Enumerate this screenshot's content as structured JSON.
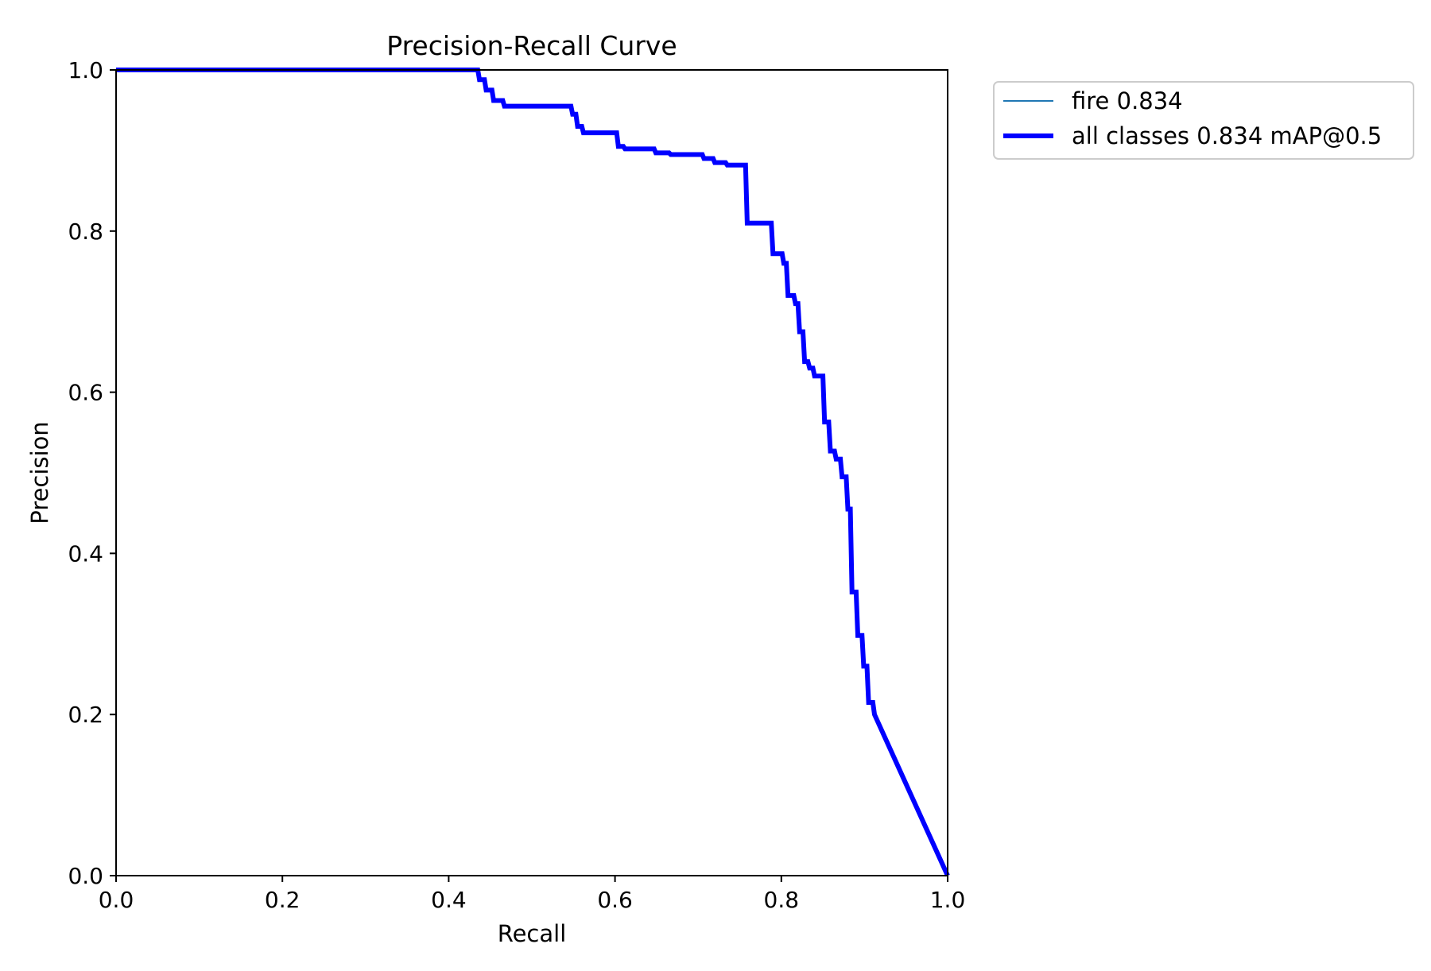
{
  "chart_data": {
    "type": "line",
    "title": "Precision-Recall Curve",
    "xlabel": "Recall",
    "ylabel": "Precision",
    "xlim": [
      0.0,
      1.0
    ],
    "ylim": [
      0.0,
      1.0
    ],
    "x_ticks": [
      "0.0",
      "0.2",
      "0.4",
      "0.6",
      "0.8",
      "1.0"
    ],
    "y_ticks": [
      "0.0",
      "0.2",
      "0.4",
      "0.6",
      "0.8",
      "1.0"
    ],
    "grid": false,
    "legend_position": "outside-upper-right",
    "series": [
      {
        "name": "fire 0.834",
        "color": "#1f77b4",
        "style": "thin",
        "points": [
          [
            0.0,
            1.0
          ],
          [
            0.435,
            1.0
          ],
          [
            0.437,
            0.988
          ],
          [
            0.443,
            0.988
          ],
          [
            0.445,
            0.975
          ],
          [
            0.452,
            0.975
          ],
          [
            0.454,
            0.962
          ],
          [
            0.465,
            0.962
          ],
          [
            0.467,
            0.955
          ],
          [
            0.547,
            0.955
          ],
          [
            0.549,
            0.945
          ],
          [
            0.553,
            0.945
          ],
          [
            0.555,
            0.93
          ],
          [
            0.56,
            0.93
          ],
          [
            0.562,
            0.922
          ],
          [
            0.602,
            0.922
          ],
          [
            0.604,
            0.905
          ],
          [
            0.61,
            0.905
          ],
          [
            0.612,
            0.902
          ],
          [
            0.647,
            0.902
          ],
          [
            0.649,
            0.897
          ],
          [
            0.665,
            0.897
          ],
          [
            0.667,
            0.895
          ],
          [
            0.705,
            0.895
          ],
          [
            0.707,
            0.89
          ],
          [
            0.718,
            0.89
          ],
          [
            0.72,
            0.885
          ],
          [
            0.733,
            0.885
          ],
          [
            0.735,
            0.882
          ],
          [
            0.757,
            0.882
          ],
          [
            0.759,
            0.81
          ],
          [
            0.788,
            0.81
          ],
          [
            0.79,
            0.772
          ],
          [
            0.801,
            0.772
          ],
          [
            0.803,
            0.76
          ],
          [
            0.806,
            0.76
          ],
          [
            0.808,
            0.72
          ],
          [
            0.815,
            0.72
          ],
          [
            0.817,
            0.71
          ],
          [
            0.82,
            0.71
          ],
          [
            0.822,
            0.675
          ],
          [
            0.826,
            0.675
          ],
          [
            0.828,
            0.638
          ],
          [
            0.832,
            0.638
          ],
          [
            0.834,
            0.63
          ],
          [
            0.838,
            0.63
          ],
          [
            0.84,
            0.62
          ],
          [
            0.85,
            0.62
          ],
          [
            0.852,
            0.563
          ],
          [
            0.857,
            0.563
          ],
          [
            0.859,
            0.527
          ],
          [
            0.864,
            0.527
          ],
          [
            0.866,
            0.517
          ],
          [
            0.871,
            0.517
          ],
          [
            0.873,
            0.495
          ],
          [
            0.878,
            0.495
          ],
          [
            0.88,
            0.455
          ],
          [
            0.883,
            0.455
          ],
          [
            0.885,
            0.352
          ],
          [
            0.89,
            0.352
          ],
          [
            0.892,
            0.298
          ],
          [
            0.897,
            0.298
          ],
          [
            0.899,
            0.26
          ],
          [
            0.903,
            0.26
          ],
          [
            0.905,
            0.215
          ],
          [
            0.91,
            0.215
          ],
          [
            0.912,
            0.2
          ],
          [
            1.0,
            0.0
          ]
        ]
      },
      {
        "name": "all classes 0.834 mAP@0.5",
        "color": "#0000ff",
        "style": "thick",
        "points": [
          [
            0.0,
            1.0
          ],
          [
            0.435,
            1.0
          ],
          [
            0.437,
            0.988
          ],
          [
            0.443,
            0.988
          ],
          [
            0.445,
            0.975
          ],
          [
            0.452,
            0.975
          ],
          [
            0.454,
            0.962
          ],
          [
            0.465,
            0.962
          ],
          [
            0.467,
            0.955
          ],
          [
            0.547,
            0.955
          ],
          [
            0.549,
            0.945
          ],
          [
            0.553,
            0.945
          ],
          [
            0.555,
            0.93
          ],
          [
            0.56,
            0.93
          ],
          [
            0.562,
            0.922
          ],
          [
            0.602,
            0.922
          ],
          [
            0.604,
            0.905
          ],
          [
            0.61,
            0.905
          ],
          [
            0.612,
            0.902
          ],
          [
            0.647,
            0.902
          ],
          [
            0.649,
            0.897
          ],
          [
            0.665,
            0.897
          ],
          [
            0.667,
            0.895
          ],
          [
            0.705,
            0.895
          ],
          [
            0.707,
            0.89
          ],
          [
            0.718,
            0.89
          ],
          [
            0.72,
            0.885
          ],
          [
            0.733,
            0.885
          ],
          [
            0.735,
            0.882
          ],
          [
            0.757,
            0.882
          ],
          [
            0.759,
            0.81
          ],
          [
            0.788,
            0.81
          ],
          [
            0.79,
            0.772
          ],
          [
            0.801,
            0.772
          ],
          [
            0.803,
            0.76
          ],
          [
            0.806,
            0.76
          ],
          [
            0.808,
            0.72
          ],
          [
            0.815,
            0.72
          ],
          [
            0.817,
            0.71
          ],
          [
            0.82,
            0.71
          ],
          [
            0.822,
            0.675
          ],
          [
            0.826,
            0.675
          ],
          [
            0.828,
            0.638
          ],
          [
            0.832,
            0.638
          ],
          [
            0.834,
            0.63
          ],
          [
            0.838,
            0.63
          ],
          [
            0.84,
            0.62
          ],
          [
            0.85,
            0.62
          ],
          [
            0.852,
            0.563
          ],
          [
            0.857,
            0.563
          ],
          [
            0.859,
            0.527
          ],
          [
            0.864,
            0.527
          ],
          [
            0.866,
            0.517
          ],
          [
            0.871,
            0.517
          ],
          [
            0.873,
            0.495
          ],
          [
            0.878,
            0.495
          ],
          [
            0.88,
            0.455
          ],
          [
            0.883,
            0.455
          ],
          [
            0.885,
            0.352
          ],
          [
            0.89,
            0.352
          ],
          [
            0.892,
            0.298
          ],
          [
            0.897,
            0.298
          ],
          [
            0.899,
            0.26
          ],
          [
            0.903,
            0.26
          ],
          [
            0.905,
            0.215
          ],
          [
            0.91,
            0.215
          ],
          [
            0.912,
            0.2
          ],
          [
            1.0,
            0.0
          ]
        ]
      }
    ]
  }
}
